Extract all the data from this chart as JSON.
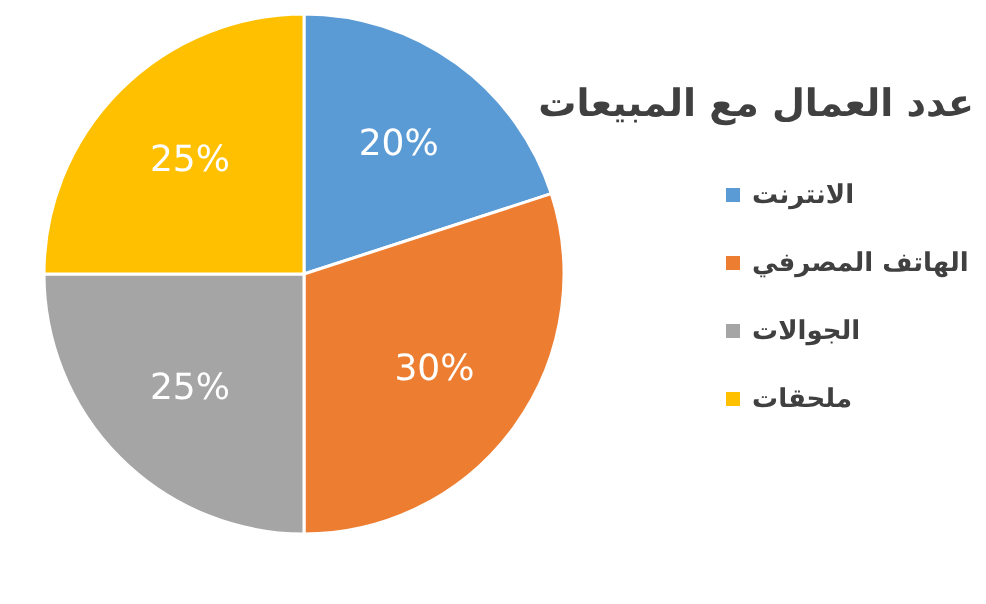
{
  "chart_data": {
    "type": "pie",
    "title": "عدد العمال مع المبيعات",
    "categories": [
      "الانترنت",
      "الهاتف المصرفي",
      "الجوالات",
      "ملحقات"
    ],
    "values": [
      20,
      30,
      25,
      25
    ],
    "value_labels": [
      "20%",
      "30%",
      "25%",
      "25%"
    ],
    "colors": [
      "#5b9bd5",
      "#ed7d31",
      "#a5a5a5",
      "#ffc000"
    ],
    "legend": "right"
  }
}
